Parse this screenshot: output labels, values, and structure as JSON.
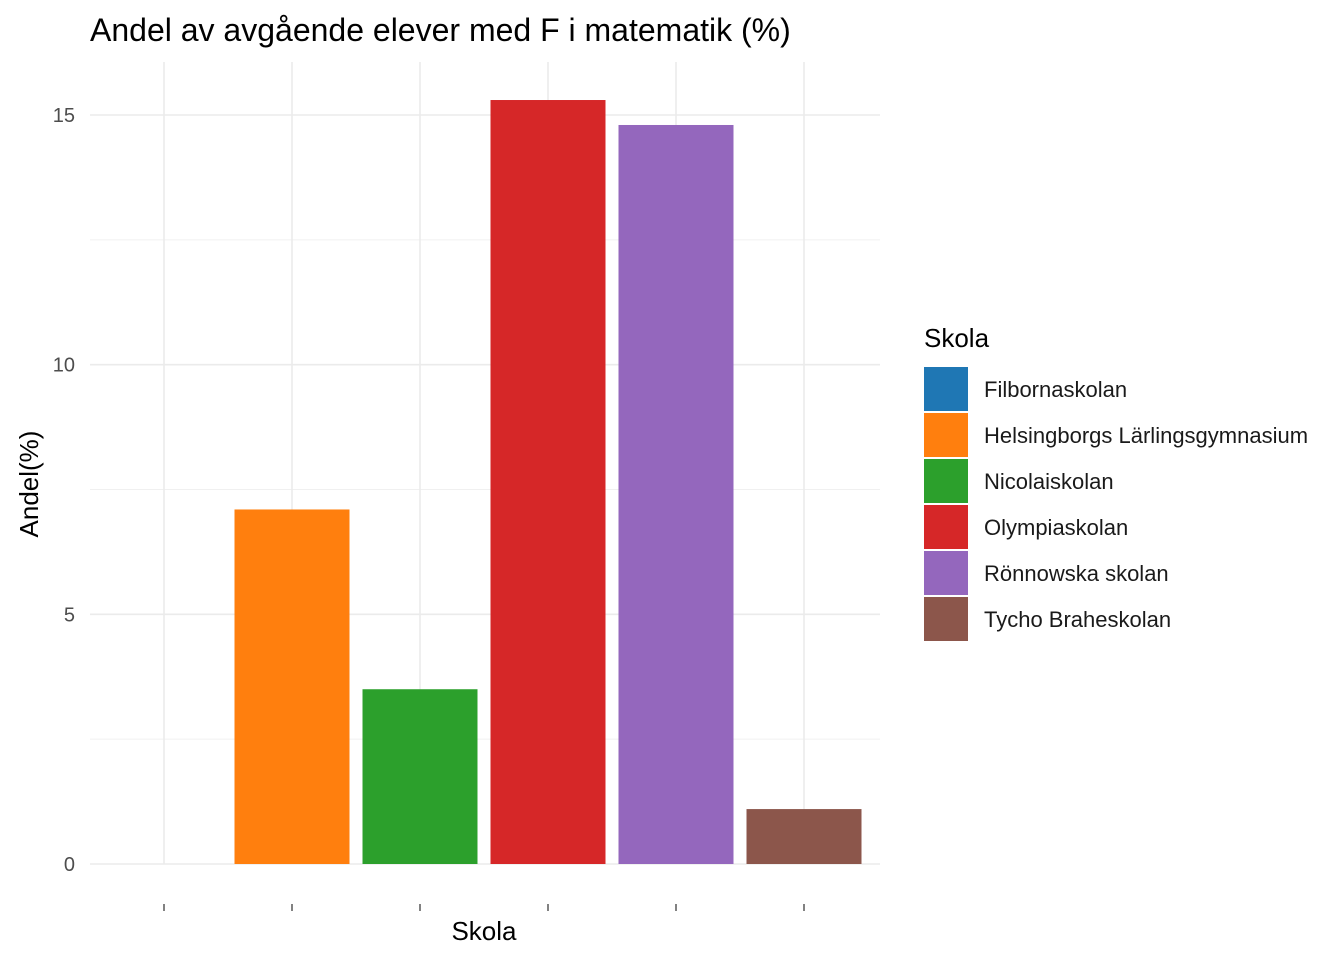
{
  "chart_data": {
    "type": "bar",
    "title": "Andel av avgående elever med F i matematik (%)",
    "xlabel": "Skola",
    "ylabel": "Andel(%)",
    "categories": [
      "Filbornaskolan",
      "Helsingborgs Lärlingsgymnasium",
      "Nicolaiskolan",
      "Olympiaskolan",
      "Rönnowska skolan",
      "Tycho Braheskolan"
    ],
    "values": [
      0,
      7.1,
      3.5,
      15.3,
      14.8,
      1.1
    ],
    "colors": [
      "#1f77b4",
      "#ff7f0e",
      "#2ca02c",
      "#d62728",
      "#9467bd",
      "#8c564b"
    ],
    "ylim": [
      0,
      15.5
    ],
    "yticks": [
      0,
      5,
      10,
      15
    ],
    "x_tick_labels_shown": false,
    "grid": true,
    "legend": {
      "title": "Skola",
      "position": "right"
    }
  }
}
